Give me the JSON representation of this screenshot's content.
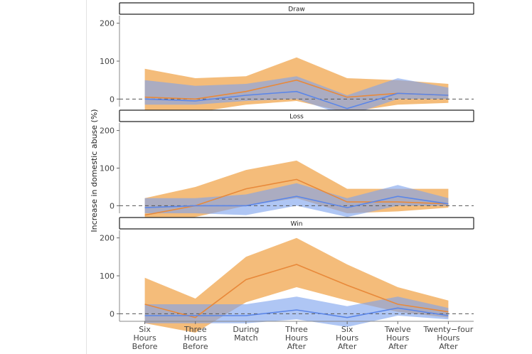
{
  "chart_data": {
    "type": "area",
    "ylabel": "Increase in domestic abuse (%)",
    "xlabel": "",
    "x": [
      "Six\nHours\nBefore",
      "Three\nHours\nBefore",
      "During\nMatch",
      "Three\nHours\nAfter",
      "Six\nHours\nAfter",
      "Twelve\nHours\nAfter",
      "Twenty−four\nHours\nAfter"
    ],
    "ylim": [
      -20,
      220
    ],
    "yticks": [
      0,
      100,
      200
    ],
    "reference_line": 0,
    "grid": false,
    "colors": {
      "orange": "#f0a247",
      "blue": "#7ea3ee",
      "orange_line": "#e8893a",
      "blue_line": "#5b86e8"
    },
    "panels": [
      {
        "title": "Draw",
        "series": [
          {
            "color": "orange",
            "values": [
              5,
              0,
              20,
              50,
              5,
              15,
              10
            ],
            "lower": [
              -40,
              -35,
              -15,
              -5,
              -35,
              -15,
              -10
            ],
            "upper": [
              80,
              55,
              60,
              110,
              55,
              50,
              40
            ]
          },
          {
            "color": "blue",
            "values": [
              0,
              -5,
              10,
              20,
              -25,
              15,
              10
            ],
            "lower": [
              -15,
              -15,
              -5,
              0,
              -45,
              0,
              0
            ],
            "upper": [
              50,
              35,
              40,
              60,
              10,
              55,
              30
            ]
          }
        ]
      },
      {
        "title": "Loss",
        "series": [
          {
            "color": "orange",
            "values": [
              -25,
              0,
              45,
              70,
              10,
              10,
              5
            ],
            "lower": [
              -55,
              -30,
              0,
              20,
              -20,
              -15,
              -5
            ],
            "upper": [
              20,
              50,
              95,
              120,
              45,
              45,
              45
            ]
          },
          {
            "color": "blue",
            "values": [
              -5,
              0,
              0,
              25,
              -5,
              25,
              5
            ],
            "lower": [
              -20,
              -20,
              -25,
              0,
              -30,
              0,
              0
            ],
            "upper": [
              20,
              20,
              30,
              60,
              20,
              55,
              20
            ]
          }
        ]
      },
      {
        "title": "Win",
        "series": [
          {
            "color": "orange",
            "values": [
              25,
              -10,
              90,
              130,
              75,
              25,
              5
            ],
            "lower": [
              -25,
              -50,
              30,
              70,
              35,
              5,
              -10
            ],
            "upper": [
              95,
              40,
              150,
              200,
              130,
              70,
              35
            ]
          },
          {
            "color": "blue",
            "values": [
              -5,
              -5,
              -5,
              10,
              -10,
              15,
              -5
            ],
            "lower": [
              -25,
              -25,
              -25,
              -15,
              -35,
              -5,
              -15
            ],
            "upper": [
              25,
              25,
              25,
              45,
              20,
              45,
              15
            ]
          }
        ]
      }
    ]
  }
}
